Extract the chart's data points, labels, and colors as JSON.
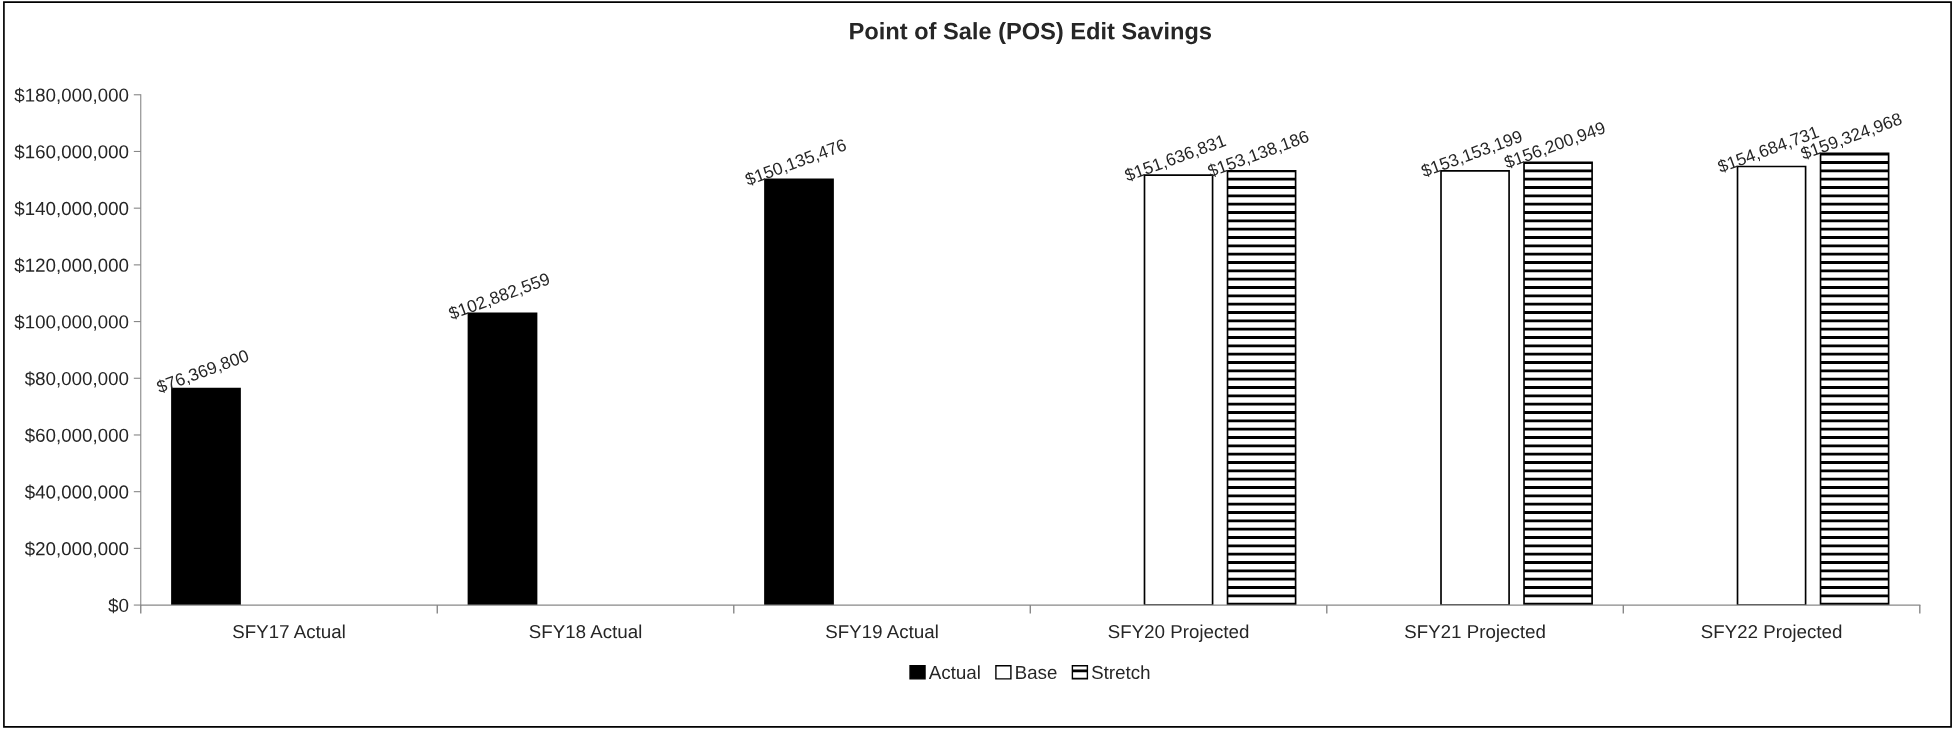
{
  "chart_data": {
    "type": "bar",
    "title": "Point of Sale (POS) Edit Savings",
    "categories": [
      "SFY17 Actual",
      "SFY18 Actual",
      "SFY19 Actual",
      "SFY20 Projected",
      "SFY21 Projected",
      "SFY22 Projected"
    ],
    "series": [
      {
        "name": "Actual",
        "color": "#000000",
        "values": [
          76369800,
          102882559,
          150135476,
          null,
          null,
          null
        ],
        "value_labels": [
          "$76,369,800",
          "$102,882,559",
          "$150,135,476",
          null,
          null,
          null
        ]
      },
      {
        "name": "Base",
        "color": "#ffffff",
        "values": [
          null,
          null,
          null,
          151636831,
          153153199,
          154684731
        ],
        "value_labels": [
          null,
          null,
          null,
          "$151,636,831",
          "$153,153,199",
          "$154,684,731"
        ]
      },
      {
        "name": "Stretch",
        "color": "#000000",
        "values": [
          null,
          null,
          null,
          153138186,
          156200949,
          159324968
        ],
        "value_labels": [
          null,
          null,
          null,
          "$153,138,186",
          "$156,200,949",
          "$159,324,968"
        ]
      }
    ],
    "ylim": [
      0,
      180000000
    ],
    "yticks": [
      {
        "value": 0,
        "label": "$0"
      },
      {
        "value": 20000000,
        "label": "$20,000,000"
      },
      {
        "value": 40000000,
        "label": "$40,000,000"
      },
      {
        "value": 60000000,
        "label": "$60,000,000"
      },
      {
        "value": 80000000,
        "label": "$80,000,000"
      },
      {
        "value": 100000000,
        "label": "$100,000,000"
      },
      {
        "value": 120000000,
        "label": "$120,000,000"
      },
      {
        "value": 140000000,
        "label": "$140,000,000"
      },
      {
        "value": 160000000,
        "label": "$160,000,000"
      },
      {
        "value": 180000000,
        "label": "$180,000,000"
      }
    ],
    "grid": false,
    "legend": "bottom"
  }
}
